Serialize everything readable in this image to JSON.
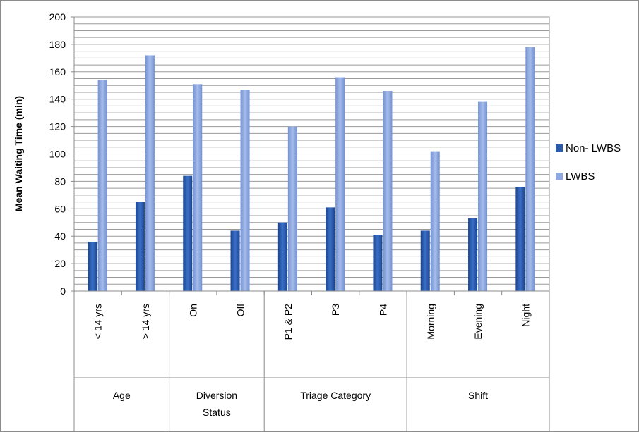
{
  "chart_data": {
    "type": "bar",
    "ylabel": "Mean Waiting Time (min)",
    "ylim": [
      0,
      200
    ],
    "ytick_step": 20,
    "grid_step": 5,
    "yticks": [
      "0",
      "20",
      "40",
      "60",
      "80",
      "100",
      "120",
      "140",
      "160",
      "180",
      "200"
    ],
    "categories": [
      "< 14 yrs",
      "> 14 yrs",
      "On",
      "Off",
      "P1 & P2",
      "P3",
      "P4",
      "Morning",
      "Evening",
      "Night"
    ],
    "groups": [
      {
        "label_lines": [
          "Age"
        ],
        "count": 2
      },
      {
        "label_lines": [
          "Diversion",
          "Status"
        ],
        "count": 2
      },
      {
        "label_lines": [
          "Triage Category"
        ],
        "count": 3
      },
      {
        "label_lines": [
          "Shift"
        ],
        "count": 3
      }
    ],
    "series": [
      {
        "name": "Non- LWBS",
        "color": "#2a5aaa",
        "values": [
          36,
          65,
          84,
          44,
          50,
          61,
          41,
          44,
          53,
          76
        ]
      },
      {
        "name": "LWBS",
        "color": "#8fa8df",
        "values": [
          154,
          172,
          151,
          147,
          120,
          156,
          146,
          102,
          138,
          178
        ]
      }
    ],
    "legend_position": "right",
    "grid": true
  }
}
